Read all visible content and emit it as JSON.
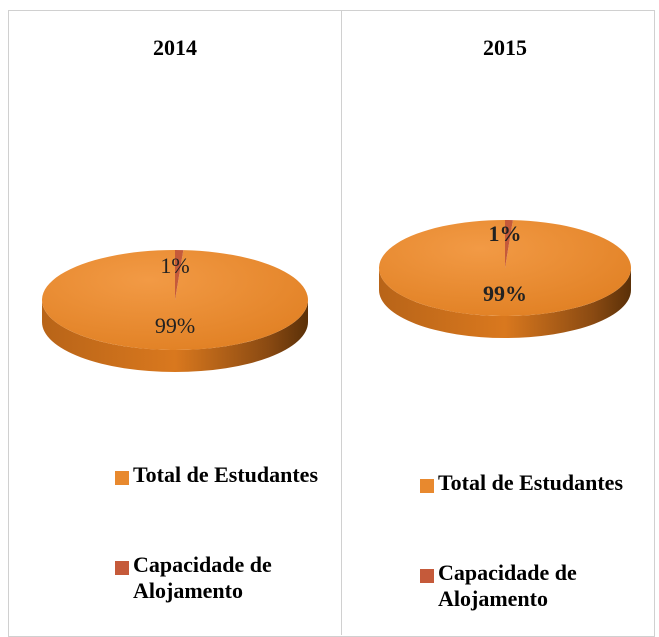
{
  "chart_data": [
    {
      "type": "pie",
      "title": "2014",
      "categories": [
        "Total de Estudantes",
        "Capacidade de Alojamento"
      ],
      "values": [
        99,
        1
      ],
      "colors": [
        "#e8892e",
        "#c55a3a"
      ]
    },
    {
      "type": "pie",
      "title": "2015",
      "categories": [
        "Total de Estudantes",
        "Capacidade de Alojamento"
      ],
      "values": [
        99,
        1
      ],
      "colors": [
        "#e8892e",
        "#c55a3a"
      ]
    }
  ]
}
